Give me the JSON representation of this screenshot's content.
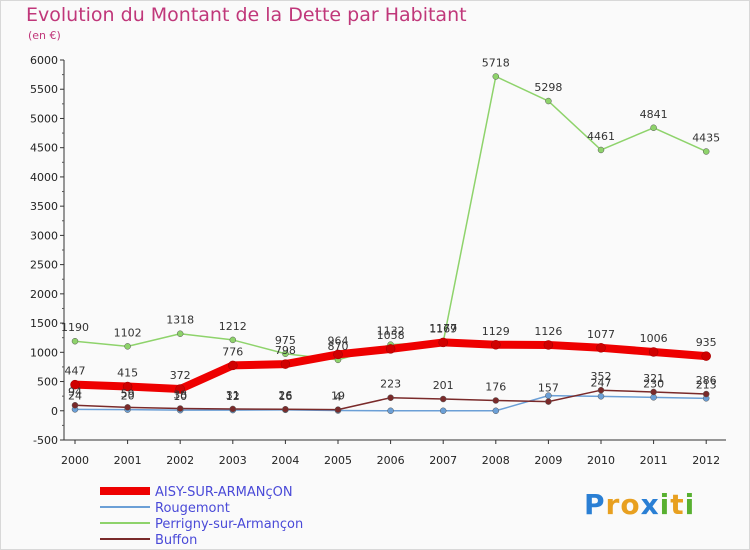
{
  "header": {
    "title": "Evolution du Montant de la Dette par Habitant",
    "unit": "(en €)"
  },
  "logo": {
    "text": "Proxiti",
    "letters": [
      "P",
      "r",
      "o",
      "x",
      "i",
      "t",
      "i"
    ],
    "colors": [
      "#2a7fd4",
      "#e8a020",
      "#e8a020",
      "#2a7fd4",
      "#58b030",
      "#e8a020",
      "#58b030"
    ]
  },
  "chart_data": {
    "type": "line",
    "categories": [
      "2000",
      "2001",
      "2002",
      "2003",
      "2004",
      "2005",
      "2006",
      "2007",
      "2008",
      "2009",
      "2010",
      "2011",
      "2012"
    ],
    "ylim": [
      -500,
      6000
    ],
    "yticks": [
      -500,
      0,
      500,
      1000,
      1500,
      2000,
      2500,
      3000,
      3500,
      4000,
      4500,
      5000,
      5500,
      6000
    ],
    "grid": false,
    "legend_position": "bottom-left",
    "series": [
      {
        "name": "AISY-SUR-ARMANçON",
        "color": "#ee0000",
        "width": 8,
        "values": [
          447,
          415,
          372,
          776,
          798,
          964,
          1058,
          1169,
          1129,
          1126,
          1077,
          1006,
          935
        ]
      },
      {
        "name": "Rougemont",
        "color": "#6b9fd6",
        "width": 1.5,
        "values": [
          24,
          20,
          10,
          12,
          16,
          4,
          0,
          0,
          0,
          259,
          247,
          230,
          213
        ]
      },
      {
        "name": "Perrigny-sur-Armançon",
        "color": "#8ed36b",
        "width": 1.5,
        "values": [
          1190,
          1102,
          1318,
          1212,
          975,
          870,
          1132,
          1177,
          5718,
          5298,
          4461,
          4841,
          4435
        ]
      },
      {
        "name": "Buffon",
        "color": "#7a2a2a",
        "width": 1.5,
        "values": [
          94,
          59,
          38,
          31,
          26,
          19,
          223,
          201,
          176,
          157,
          352,
          321,
          286
        ]
      }
    ],
    "data_labels": [
      {
        "series": 0,
        "values": [
          "447",
          "415",
          "372",
          "776",
          "798",
          "964",
          "1058",
          "1169",
          "1129",
          "1126",
          "1077",
          "1006",
          "935"
        ]
      },
      {
        "series": 1,
        "values": [
          "24",
          "20",
          "10",
          "12",
          "16",
          "4",
          "",
          "",
          "",
          "",
          "247",
          "230",
          "213"
        ]
      },
      {
        "series": 2,
        "values": [
          "1190",
          "1102",
          "1318",
          "1212",
          "975",
          "870",
          "1132",
          "1177",
          "5718",
          "5298",
          "4461",
          "4841",
          "4435"
        ]
      },
      {
        "series": 3,
        "values": [
          "94",
          "59",
          "38",
          "31",
          "26",
          "19",
          "223",
          "201",
          "176",
          "157",
          "352",
          "321",
          "286"
        ]
      }
    ]
  }
}
